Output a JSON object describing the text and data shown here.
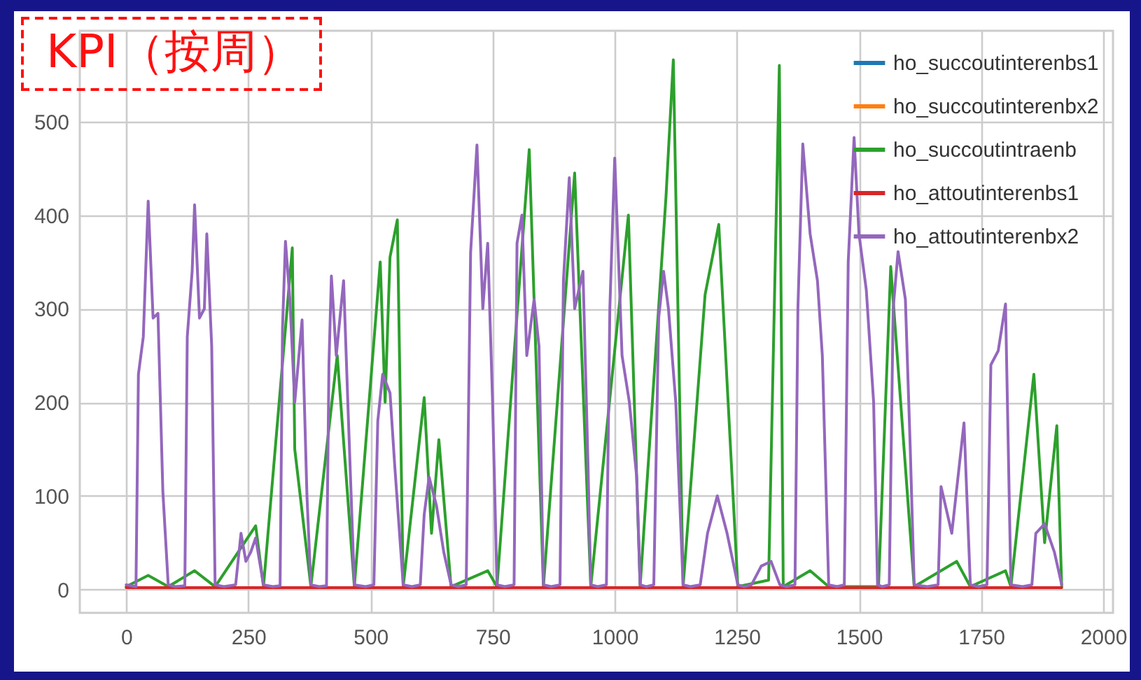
{
  "chart_data": {
    "type": "line",
    "title": "KPI（按周）",
    "xlim": [
      -95,
      2020
    ],
    "ylim": [
      -25,
      597
    ],
    "xticks": [
      0,
      250,
      500,
      750,
      1000,
      1250,
      1500,
      1750,
      2000
    ],
    "yticks": [
      0,
      100,
      200,
      300,
      400,
      500
    ],
    "grid": true,
    "legend": "top right",
    "line_style": "solid",
    "marker": "none",
    "series": [
      {
        "name": "ho_succoutinterenbs1",
        "color": "#1f77b4"
      },
      {
        "name": "ho_succoutinterenbx2",
        "color": "#ff7f0e"
      },
      {
        "name": "ho_succoutintraenb",
        "color": "#2ca02c",
        "x": [
          0,
          45,
          86,
          140,
          182,
          265,
          281,
          340,
          345,
          378,
          432,
          467,
          520,
          530,
          540,
          555,
          567,
          610,
          625,
          640,
          665,
          740,
          759,
          825,
          854,
          918,
          951,
          1028,
          1052,
          1105,
          1120,
          1140,
          1185,
          1213,
          1252,
          1315,
          1337,
          1345,
          1400,
          1438,
          1540,
          1565,
          1613,
          1700,
          1728,
          1800,
          1811,
          1858,
          1880,
          1905,
          1915
        ],
        "values": [
          3,
          15,
          3,
          20,
          3,
          68,
          3,
          365,
          150,
          3,
          250,
          3,
          350,
          200,
          355,
          395,
          3,
          205,
          60,
          160,
          3,
          20,
          3,
          470,
          3,
          445,
          3,
          400,
          3,
          420,
          566,
          3,
          315,
          390,
          3,
          10,
          560,
          3,
          20,
          3,
          3,
          345,
          3,
          30,
          3,
          20,
          3,
          230,
          50,
          175,
          3
        ]
      },
      {
        "name": "ho_attoutinterenbs1",
        "color": "#d62728",
        "x": [
          0,
          250,
          500,
          750,
          1000,
          1250,
          1500,
          1750,
          1915
        ],
        "values": [
          2,
          2,
          2,
          2,
          2,
          2,
          2,
          2,
          2
        ]
      },
      {
        "name": "ho_attoutinterenbx2",
        "color": "#9467bd",
        "x": [
          0,
          20,
          25,
          35,
          45,
          55,
          65,
          75,
          86,
          100,
          120,
          125,
          135,
          140,
          150,
          160,
          165,
          175,
          182,
          200,
          224,
          235,
          245,
          255,
          265,
          281,
          300,
          315,
          320,
          326,
          335,
          345,
          360,
          370,
          378,
          395,
          410,
          415,
          420,
          430,
          445,
          455,
          467,
          490,
          507,
          515,
          525,
          540,
          550,
          567,
          585,
          602,
          610,
          620,
          635,
          650,
          665,
          680,
          696,
          705,
          718,
          730,
          740,
          750,
          759,
          775,
          794,
          800,
          810,
          820,
          835,
          845,
          854,
          870,
          888,
          895,
          907,
          918,
          935,
          945,
          951,
          965,
          983,
          990,
          1000,
          1015,
          1030,
          1045,
          1052,
          1065,
          1080,
          1090,
          1100,
          1110,
          1125,
          1140,
          1155,
          1175,
          1190,
          1210,
          1230,
          1252,
          1265,
          1280,
          1300,
          1320,
          1338,
          1352,
          1369,
          1375,
          1385,
          1400,
          1415,
          1425,
          1438,
          1455,
          1470,
          1478,
          1490,
          1500,
          1515,
          1530,
          1538,
          1548,
          1562,
          1570,
          1580,
          1595,
          1605,
          1613,
          1640,
          1662,
          1668,
          1690,
          1715,
          1728,
          1745,
          1762,
          1770,
          1785,
          1800,
          1811,
          1835,
          1854,
          1862,
          1880,
          1900,
          1915
        ],
        "values": [
          5,
          3,
          230,
          270,
          415,
          290,
          295,
          105,
          5,
          3,
          4,
          270,
          340,
          411,
          290,
          300,
          380,
          260,
          5,
          3,
          5,
          60,
          30,
          40,
          55,
          5,
          3,
          4,
          280,
          372,
          310,
          200,
          288,
          100,
          5,
          3,
          4,
          240,
          335,
          250,
          330,
          180,
          5,
          3,
          5,
          180,
          230,
          210,
          130,
          5,
          3,
          5,
          80,
          120,
          90,
          40,
          5,
          3,
          5,
          360,
          475,
          300,
          370,
          200,
          5,
          3,
          5,
          370,
          400,
          250,
          310,
          260,
          5,
          3,
          5,
          330,
          440,
          300,
          340,
          140,
          5,
          3,
          5,
          300,
          461,
          250,
          200,
          120,
          5,
          3,
          5,
          290,
          340,
          300,
          200,
          5,
          3,
          5,
          60,
          100,
          60,
          5,
          3,
          5,
          25,
          30,
          5,
          3,
          5,
          300,
          476,
          380,
          330,
          250,
          5,
          3,
          5,
          350,
          483,
          380,
          320,
          200,
          5,
          3,
          5,
          300,
          361,
          310,
          150,
          5,
          3,
          5,
          110,
          60,
          178,
          5,
          3,
          5,
          240,
          255,
          305,
          5,
          3,
          5,
          60,
          70,
          40,
          5
        ]
      }
    ]
  }
}
